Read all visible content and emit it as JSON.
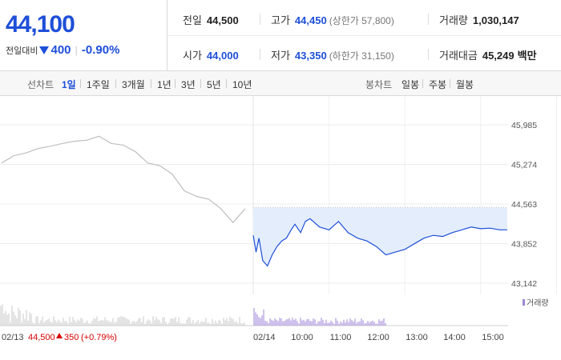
{
  "header": {
    "price": "44,100",
    "change_label": "전일대비",
    "change_amount": "400",
    "change_pct": "-0.90%",
    "prev_close_label": "전일",
    "prev_close": "44,500",
    "high_label": "고가",
    "high": "44,450",
    "upper_limit": "(상한가 57,800)",
    "volume_label": "거래량",
    "volume": "1,030,147",
    "open_label": "시가",
    "open": "44,000",
    "low_label": "저가",
    "low": "43,350",
    "lower_limit": "(하한가 31,150)",
    "value_label": "거래대금",
    "value": "45,249",
    "value_unit": "백만"
  },
  "tabs": {
    "line_label": "선차트",
    "line": [
      "1일",
      "1주일",
      "3개월",
      "1년",
      "3년",
      "5년",
      "10년"
    ],
    "selected_line": "1일",
    "candle_label": "봉차트",
    "candle": [
      "일봉",
      "주봉",
      "월봉"
    ]
  },
  "colors": {
    "up": "#d60000",
    "down": "#1e4fd8",
    "prev_line": "#bfbfbf",
    "fill": "#e3edfb"
  },
  "chart_data": {
    "type": "line",
    "y_ticks": [
      "45,985",
      "45,274",
      "44,563",
      "43,852",
      "43,142"
    ],
    "ylim": [
      43142,
      45985
    ],
    "reference_price": 44500,
    "reference_label": "44,563",
    "x_labels": [
      "02/14",
      "10:00",
      "11:00",
      "12:00",
      "13:00",
      "14:00",
      "15:00"
    ],
    "prev_day_label": "02/13",
    "prev_day_close": "44,500",
    "prev_day_change": "350",
    "prev_day_change_pct": "(+0.79%)",
    "volume_legend": "거래량",
    "series": [
      {
        "name": "02/13",
        "x": [
          0,
          0.05,
          0.1,
          0.15,
          0.2,
          0.25,
          0.3,
          0.35,
          0.4,
          0.45,
          0.5,
          0.55,
          0.6,
          0.65,
          0.7,
          0.75,
          0.8,
          0.85,
          0.9,
          0.95,
          1.0
        ],
        "values": [
          45300,
          45430,
          45480,
          45560,
          45600,
          45650,
          45690,
          45710,
          45780,
          45650,
          45620,
          45500,
          45300,
          45250,
          45100,
          44800,
          44700,
          44650,
          44480,
          44230,
          44480
        ]
      },
      {
        "name": "02/14",
        "x": [
          0,
          0.15,
          0.3,
          0.5,
          0.75,
          1.0,
          1.25,
          1.5,
          1.75,
          2.0,
          2.2,
          2.5,
          2.75,
          3.0,
          3.5,
          4.0,
          4.5,
          5.0,
          5.5,
          6.0,
          6.5,
          7.0,
          7.5,
          8.0,
          8.5,
          9.0,
          9.5,
          10.0,
          10.5,
          11.0,
          11.5,
          12.0,
          12.5,
          13.0,
          13.4
        ],
        "values": [
          44000,
          43700,
          43950,
          43550,
          43450,
          43650,
          43800,
          43900,
          43950,
          44100,
          44200,
          44050,
          44250,
          44300,
          44150,
          44100,
          44250,
          44050,
          43950,
          43900,
          43800,
          43650,
          43700,
          43750,
          43850,
          43950,
          44000,
          43980,
          44050,
          44100,
          44150,
          44120,
          44130,
          44100,
          44100
        ]
      }
    ]
  }
}
